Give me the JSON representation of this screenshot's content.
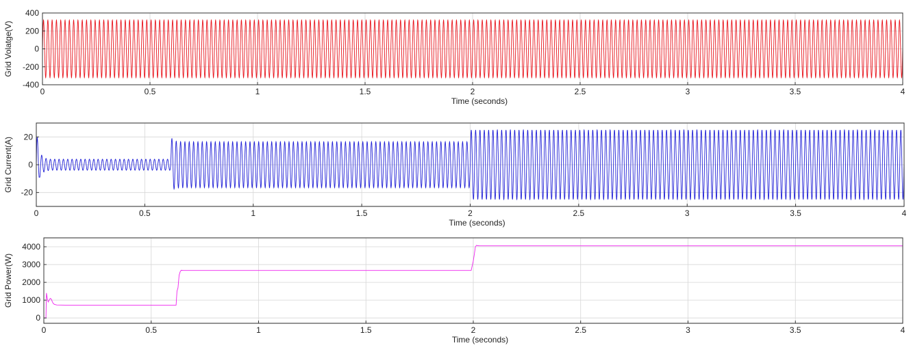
{
  "chart_data": [
    {
      "type": "line",
      "ylabel": "Grid Volatge(V)",
      "xlabel": "Time (seconds)",
      "xlim": [
        0,
        4
      ],
      "ylim": [
        -400,
        400
      ],
      "xticks": [
        0,
        0.5,
        1,
        1.5,
        2,
        2.5,
        3,
        3.5,
        4
      ],
      "xtick_labels": [
        "0",
        "0.5",
        "1",
        "1.5",
        "2",
        "2.5",
        "3",
        "3.5",
        "4"
      ],
      "yticks": [
        -400,
        -200,
        0,
        200,
        400
      ],
      "ytick_labels": [
        "-400",
        "-200",
        "0",
        "200",
        "400"
      ],
      "grid": true,
      "color": "#e8121a",
      "series": [
        {
          "kind": "sine",
          "frequency_hz": 50,
          "segments": [
            {
              "t_start": 0,
              "t_end": 4,
              "amplitude": 320
            }
          ]
        }
      ]
    },
    {
      "type": "line",
      "ylabel": "Grid Current(A)",
      "xlabel": "Time (seconds)",
      "xlim": [
        0,
        4
      ],
      "ylim": [
        -30,
        30
      ],
      "xticks": [
        0,
        0.5,
        1,
        1.5,
        2,
        2.5,
        3,
        3.5,
        4
      ],
      "xtick_labels": [
        "0",
        "0.5",
        "1",
        "1.5",
        "2",
        "2.5",
        "3",
        "3.5",
        "4"
      ],
      "yticks": [
        -20,
        0,
        20
      ],
      "ytick_labels": [
        "-20",
        "0",
        "20"
      ],
      "grid": true,
      "color": "#1f1fd6",
      "series": [
        {
          "kind": "sine",
          "frequency_hz": 50,
          "segments": [
            {
              "t_start": 0,
              "t_end": 0.06,
              "amplitude": 4,
              "startup_peak": 27,
              "startup_min": -9
            },
            {
              "t_start": 0.06,
              "t_end": 0.62,
              "amplitude": 4
            },
            {
              "t_start": 0.62,
              "t_end": 2.0,
              "amplitude": 16.5,
              "startup_peak": 20
            },
            {
              "t_start": 2.0,
              "t_end": 4,
              "amplitude": 25
            }
          ]
        }
      ]
    },
    {
      "type": "line",
      "ylabel": "Grid Power(W)",
      "xlabel": "Time (seconds)",
      "xlim": [
        0,
        4
      ],
      "ylim": [
        -300,
        4500
      ],
      "xticks": [
        0,
        0.5,
        1,
        1.5,
        2,
        2.5,
        3,
        3.5,
        4
      ],
      "xtick_labels": [
        "0",
        "0.5",
        "1",
        "1.5",
        "2",
        "2.5",
        "3",
        "3.5",
        "4"
      ],
      "yticks": [
        0,
        1000,
        2000,
        3000,
        4000
      ],
      "ytick_labels": [
        "0",
        "1000",
        "2000",
        "3000",
        "4000"
      ],
      "grid": true,
      "color": "#ee22ee",
      "series": [
        {
          "kind": "polyline",
          "x": [
            0,
            0.01,
            0.012,
            0.016,
            0.02,
            0.025,
            0.03,
            0.035,
            0.04,
            0.045,
            0.05,
            0.06,
            0.1,
            0.3,
            0.5,
            0.616,
            0.62,
            0.625,
            0.63,
            0.635,
            0.64,
            0.65,
            0.8,
            1.0,
            1.5,
            1.99,
            2.0,
            2.005,
            2.01,
            2.015,
            2.02,
            2.03,
            2.5,
            3.0,
            3.5,
            4.0
          ],
          "y": [
            0,
            0,
            1400,
            1100,
            900,
            1000,
            1100,
            1050,
            900,
            800,
            760,
            730,
            720,
            720,
            720,
            720,
            1500,
            1700,
            2400,
            2600,
            2680,
            2670,
            2670,
            2670,
            2670,
            2670,
            3200,
            3600,
            4000,
            4080,
            4060,
            4050,
            4050,
            4050,
            4050,
            4050
          ]
        }
      ]
    }
  ]
}
